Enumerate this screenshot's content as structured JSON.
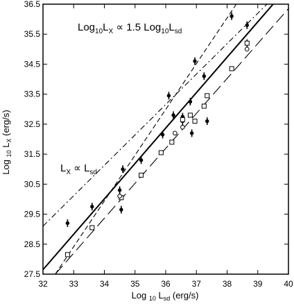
{
  "chart_data": {
    "type": "scatter",
    "xlim": [
      32,
      40
    ],
    "ylim": [
      27.5,
      36.5
    ],
    "xticks": [
      "32",
      "33",
      "34",
      "35",
      "36",
      "37",
      "38",
      "39",
      "40"
    ],
    "yticks": [
      "27.5",
      "28.5",
      "29.5",
      "30.5",
      "31.5",
      "32.5",
      "33.5",
      "34.5",
      "35.5",
      "36.5"
    ],
    "xlabel": {
      "pre": "Log ",
      "sub": "10",
      "post": " L",
      "sub2": "sd",
      "post2": "  (erg/s)"
    },
    "ylabel": {
      "pre": "Log ",
      "sub": "10",
      "post": " L",
      "sub2": "X",
      "post2": " (erg/s)"
    },
    "annotations": {
      "top": {
        "a": "Log",
        "a_sub": "10",
        "b": "L",
        "b_sub": "X",
        "c": " ∝ 1.5 Log",
        "c_sub": "10",
        "d": "L",
        "d_sub": "sd"
      },
      "left": {
        "a": "L",
        "a_sub": "X",
        "b": " ∝ L",
        "b_sub": "sd"
      }
    },
    "series": [
      {
        "marker": "filled-circle-errorbar",
        "points": [
          [
            32.8,
            29.2
          ],
          [
            33.6,
            29.75
          ],
          [
            34.5,
            30.3
          ],
          [
            34.55,
            29.65
          ],
          [
            34.6,
            31.0
          ],
          [
            35.2,
            31.3
          ],
          [
            35.9,
            32.15
          ],
          [
            36.1,
            33.45
          ],
          [
            36.25,
            32.8
          ],
          [
            36.55,
            32.75
          ],
          [
            36.55,
            32.6
          ],
          [
            36.8,
            33.25
          ],
          [
            36.85,
            32.2
          ],
          [
            36.95,
            34.6
          ],
          [
            37.25,
            34.1
          ],
          [
            37.35,
            32.6
          ],
          [
            38.15,
            36.1
          ],
          [
            38.65,
            35.8
          ],
          [
            38.65,
            35.2
          ]
        ]
      },
      {
        "marker": "open-square",
        "points": [
          [
            32.8,
            28.15
          ],
          [
            33.6,
            29.05
          ],
          [
            34.55,
            30.05
          ],
          [
            35.2,
            30.8
          ],
          [
            35.85,
            31.55
          ],
          [
            36.2,
            31.9
          ],
          [
            36.55,
            32.65
          ],
          [
            36.8,
            32.8
          ],
          [
            36.95,
            32.6
          ],
          [
            37.25,
            33.1
          ],
          [
            37.35,
            33.45
          ],
          [
            38.15,
            34.35
          ],
          [
            38.65,
            35.2
          ]
        ]
      },
      {
        "marker": "open-circle",
        "points": [
          [
            34.5,
            30.1
          ],
          [
            36.3,
            32.2
          ],
          [
            36.55,
            32.4
          ],
          [
            38.65,
            35.0
          ]
        ]
      }
    ],
    "lines": [
      {
        "style": "solid",
        "from": [
          32.0,
          27.65
        ],
        "to": [
          39.5,
          36.5
        ]
      },
      {
        "style": "long-dash",
        "from": [
          32.4,
          27.5
        ],
        "to": [
          40.0,
          36.35
        ]
      },
      {
        "style": "dash-dot",
        "from": [
          32.0,
          29.1
        ],
        "to": [
          39.3,
          36.5
        ]
      },
      {
        "style": "short-dash",
        "from": [
          32.4,
          27.5
        ],
        "to": [
          38.3,
          36.5
        ]
      }
    ]
  }
}
